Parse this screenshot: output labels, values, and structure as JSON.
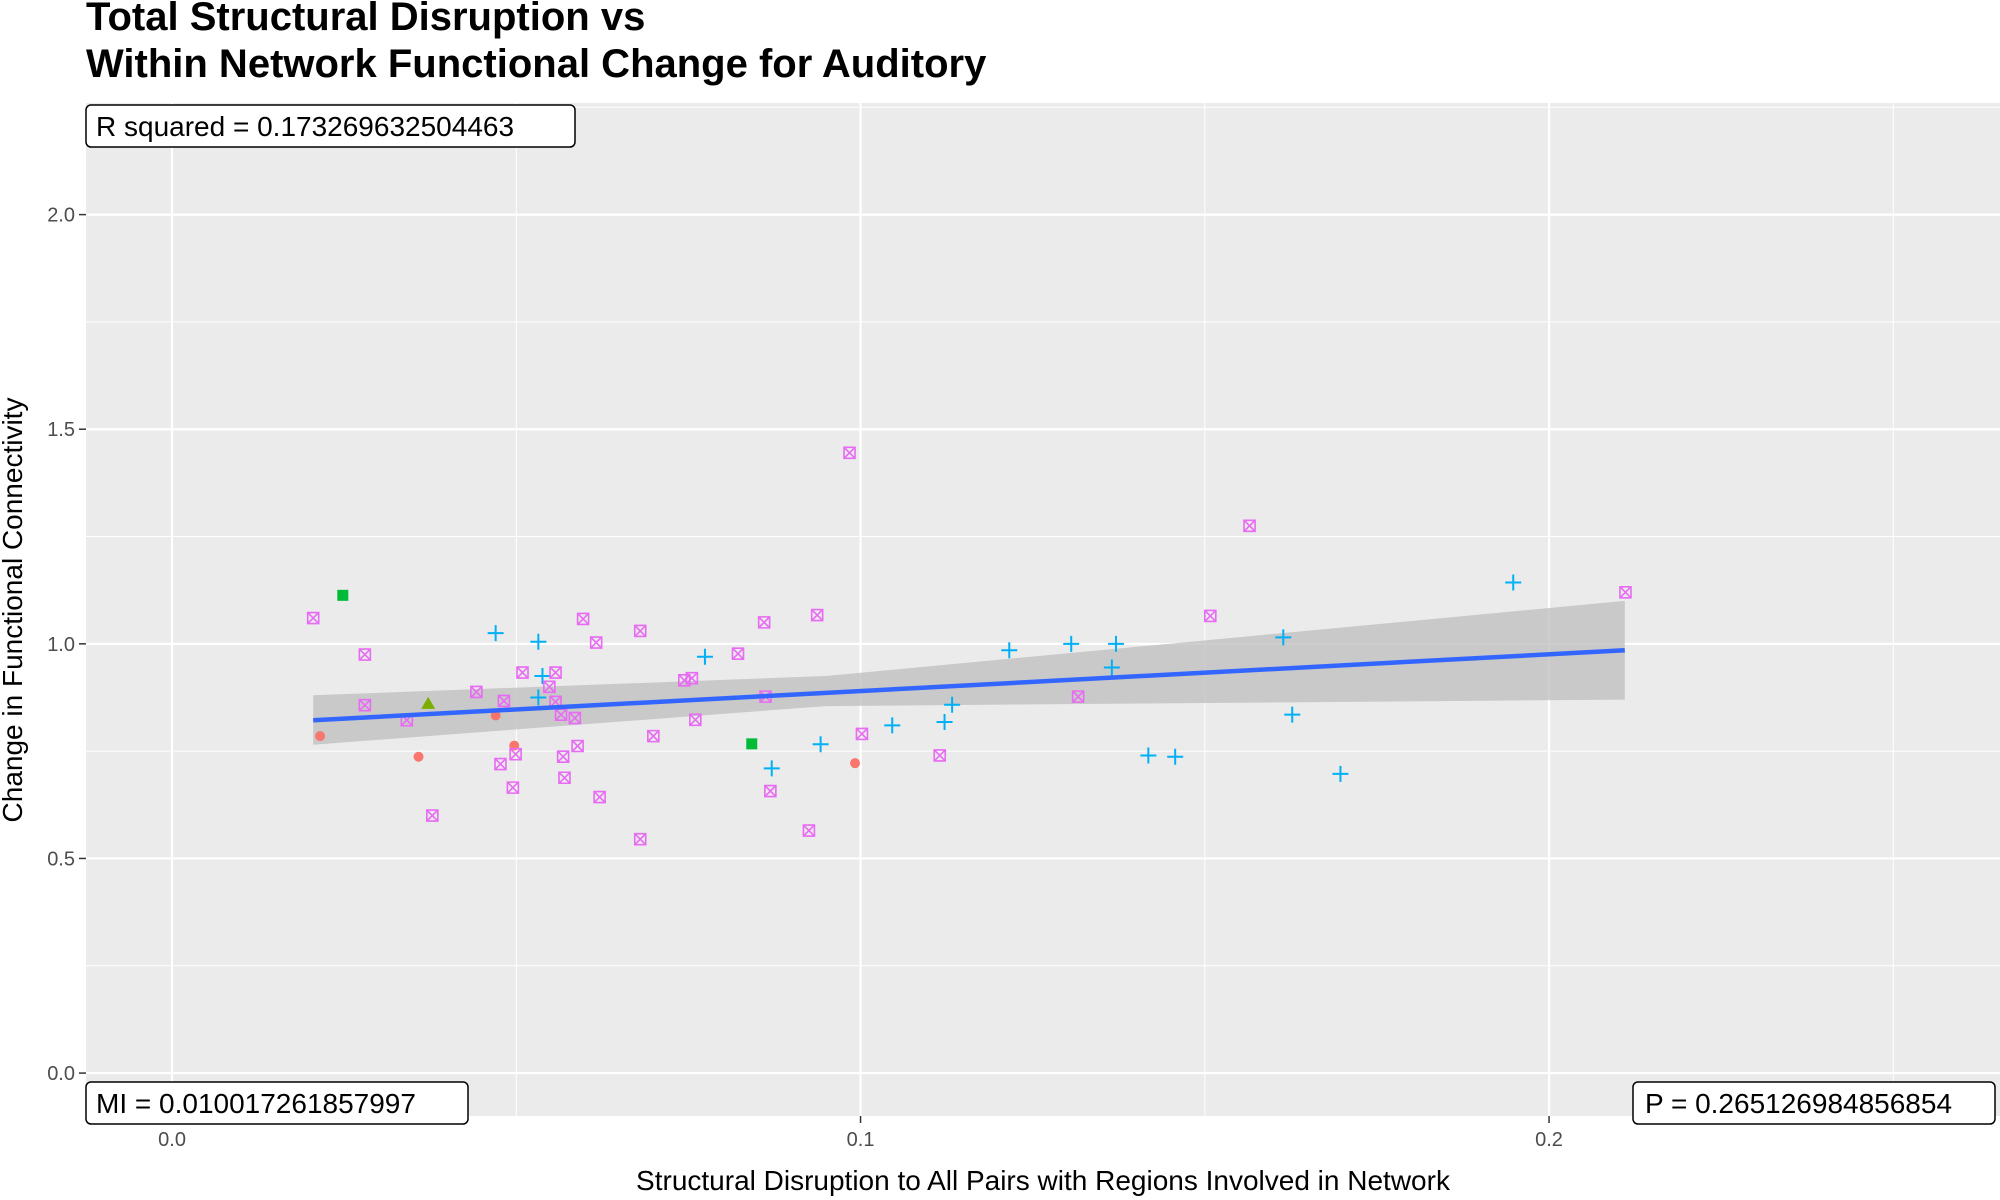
{
  "chart_data": {
    "type": "scatter",
    "title_lines": [
      "Total Structural Disruption vs",
      "Within Network Functional Change for Auditory"
    ],
    "xlabel": "Structural Disruption to All Pairs with Regions Involved in Network",
    "ylabel": "Change in Functional Connectivity",
    "xlim": [
      -0.0125,
      0.2655
    ],
    "ylim": [
      -0.1,
      2.26
    ],
    "x_ticks": [
      0.0,
      0.1,
      0.2
    ],
    "x_tick_labels": [
      "0.0",
      "0.1",
      "0.2"
    ],
    "y_ticks": [
      0.0,
      0.5,
      1.0,
      1.5,
      2.0
    ],
    "y_tick_labels": [
      "0.0",
      "0.5",
      "1.0",
      "1.5",
      "2.0"
    ],
    "grid": true,
    "background": "#ebebeb",
    "annotations": {
      "r_squared": "R squared =  0.173269632504463",
      "mi": "MI =  0.010017261857997",
      "p": "P =  0.265126984856854"
    },
    "fit": {
      "x_start": 0.0205,
      "x_end": 0.211,
      "y_start": 0.822,
      "y_end": 0.985,
      "ci_start": [
        0.765,
        0.88
      ],
      "ci_end": [
        0.87,
        1.1
      ],
      "ci_mid_x": 0.095,
      "ci_mid": [
        0.855,
        0.925
      ],
      "line_color": "#3366ff",
      "band_color": "#bdbdbd"
    },
    "series": [
      {
        "shape": "circle",
        "color": "#f8766d",
        "points": [
          [
            0.0215,
            0.785
          ],
          [
            0.0358,
            0.737
          ],
          [
            0.047,
            0.833
          ],
          [
            0.0497,
            0.763
          ],
          [
            0.0992,
            0.722
          ]
        ]
      },
      {
        "shape": "triangle",
        "color": "#7cae00",
        "points": [
          [
            0.0372,
            0.86
          ]
        ]
      },
      {
        "shape": "square",
        "color": "#00ba38",
        "points": [
          [
            0.0248,
            1.113
          ],
          [
            0.0842,
            0.767
          ]
        ]
      },
      {
        "shape": "plus",
        "color": "#00b0f6",
        "points": [
          [
            0.047,
            1.025
          ],
          [
            0.0532,
            1.005
          ],
          [
            0.0532,
            0.875
          ],
          [
            0.0538,
            0.925
          ],
          [
            0.0774,
            0.97
          ],
          [
            0.0871,
            0.71
          ],
          [
            0.0942,
            0.766
          ],
          [
            0.1046,
            0.81
          ],
          [
            0.1122,
            0.818
          ],
          [
            0.1133,
            0.858
          ],
          [
            0.1216,
            0.985
          ],
          [
            0.1306,
            1.0
          ],
          [
            0.1365,
            0.945
          ],
          [
            0.1371,
            1.0
          ],
          [
            0.1418,
            0.74
          ],
          [
            0.1457,
            0.737
          ],
          [
            0.1614,
            1.015
          ],
          [
            0.1627,
            0.835
          ],
          [
            0.1697,
            0.697
          ],
          [
            0.1948,
            1.143
          ]
        ]
      },
      {
        "shape": "boxx",
        "color": "#e76bf3",
        "points": [
          [
            0.0205,
            1.06
          ],
          [
            0.028,
            0.975
          ],
          [
            0.028,
            0.857
          ],
          [
            0.0341,
            0.822
          ],
          [
            0.0378,
            0.6
          ],
          [
            0.0442,
            0.888
          ],
          [
            0.0477,
            0.72
          ],
          [
            0.0482,
            0.867
          ],
          [
            0.0495,
            0.665
          ],
          [
            0.0499,
            0.743
          ],
          [
            0.0509,
            0.933
          ],
          [
            0.0548,
            0.9
          ],
          [
            0.0557,
            0.933
          ],
          [
            0.0557,
            0.865
          ],
          [
            0.0565,
            0.835
          ],
          [
            0.0568,
            0.737
          ],
          [
            0.057,
            0.688
          ],
          [
            0.0585,
            0.827
          ],
          [
            0.0589,
            0.762
          ],
          [
            0.0597,
            1.058
          ],
          [
            0.0616,
            1.003
          ],
          [
            0.0621,
            0.643
          ],
          [
            0.068,
            1.03
          ],
          [
            0.068,
            0.545
          ],
          [
            0.0699,
            0.785
          ],
          [
            0.0744,
            0.915
          ],
          [
            0.0755,
            0.92
          ],
          [
            0.076,
            0.823
          ],
          [
            0.0822,
            0.977
          ],
          [
            0.086,
            1.05
          ],
          [
            0.0862,
            0.877
          ],
          [
            0.0869,
            0.657
          ],
          [
            0.0925,
            0.565
          ],
          [
            0.0937,
            1.067
          ],
          [
            0.0984,
            1.445
          ],
          [
            0.1002,
            0.79
          ],
          [
            0.1115,
            0.74
          ],
          [
            0.1316,
            0.877
          ],
          [
            0.1508,
            1.065
          ],
          [
            0.1565,
            1.275
          ],
          [
            0.2111,
            1.12
          ]
        ]
      }
    ]
  }
}
